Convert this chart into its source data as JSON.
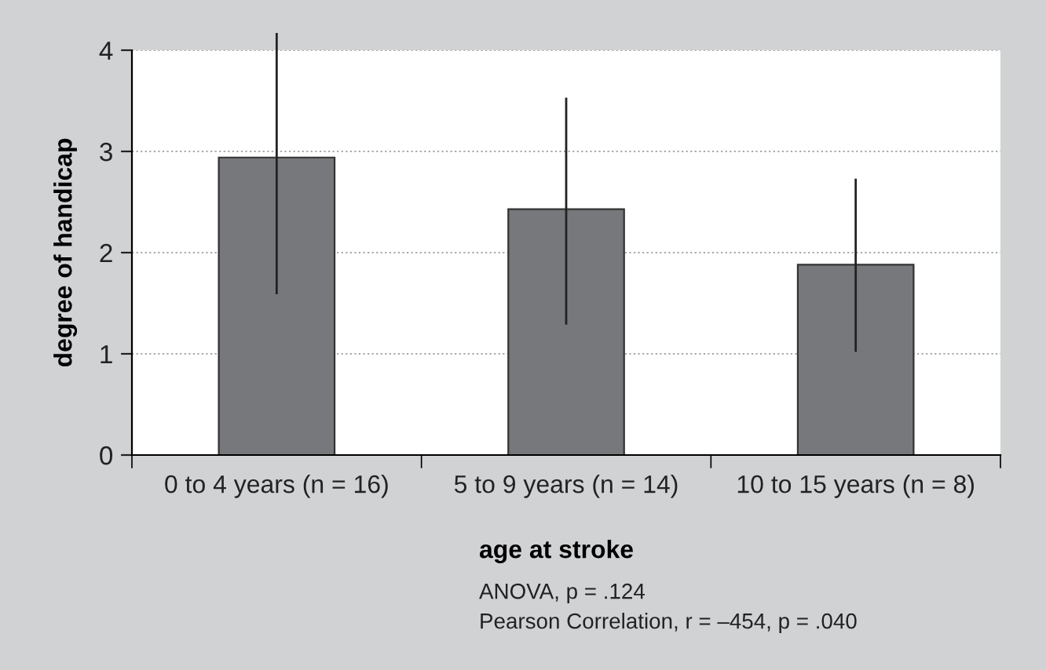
{
  "chart_data": {
    "type": "bar",
    "categories": [
      "0 to 4 years (n = 16)",
      "5 to 9 years (n = 14)",
      "10 to 15 years (n = 8)"
    ],
    "values": [
      2.94,
      2.43,
      1.88
    ],
    "errors": [
      [
        1.6,
        4.16
      ],
      [
        1.3,
        3.52
      ],
      [
        1.03,
        2.72
      ]
    ],
    "color": "#77787b",
    "ylim": [
      0,
      4
    ],
    "yticks": [
      0,
      1,
      2,
      3,
      4
    ],
    "ylabel": "degree of handicap",
    "xlabel": "age at stroke",
    "annotations": [
      "ANOVA, p = .124",
      "Pearson Correlation, r = –454, p = .040"
    ],
    "grid": "y"
  }
}
